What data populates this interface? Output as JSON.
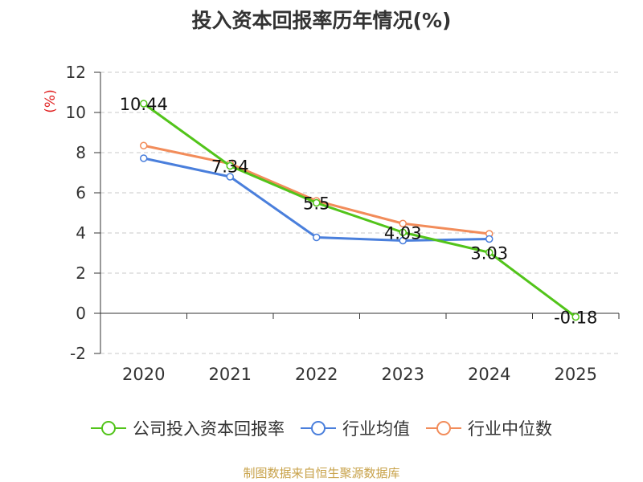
{
  "chart_data": {
    "type": "line",
    "title": "投入资本回报率历年情况(%)",
    "ylabel": "(%)",
    "xlabel": "",
    "categories": [
      "2020",
      "2021",
      "2022",
      "2023",
      "2024",
      "2025"
    ],
    "ylim": [
      -2,
      12
    ],
    "yticks": [
      -2,
      0,
      2,
      4,
      6,
      8,
      10,
      12
    ],
    "grid": true,
    "legend": "bottom",
    "series": [
      {
        "name": "公司投入资本回报率",
        "color": "#52c41a",
        "values": [
          10.44,
          7.34,
          5.5,
          4.03,
          3.03,
          -0.18
        ],
        "labels": [
          "10.44",
          "7.34",
          "5.5",
          "4.03",
          "3.03",
          "-0.18"
        ]
      },
      {
        "name": "行业均值",
        "color": "#4a7fdc",
        "values": [
          7.72,
          6.8,
          3.78,
          3.62,
          3.7,
          null
        ]
      },
      {
        "name": "行业中位数",
        "color": "#f28c5a",
        "values": [
          8.35,
          7.45,
          5.6,
          4.47,
          3.96,
          null
        ]
      }
    ]
  },
  "source": "制图数据来自恒生聚源数据库"
}
